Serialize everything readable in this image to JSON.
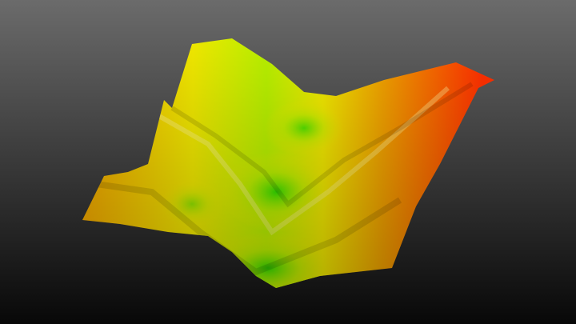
{
  "scene": {
    "background": {
      "top": "#6b6b6b",
      "bottom": "#080808"
    },
    "surface_colors": {
      "low": "#33e000",
      "mid_low": "#b8f000",
      "mid": "#f0e800",
      "mid_high": "#f0a000",
      "high": "#ff3000"
    }
  }
}
